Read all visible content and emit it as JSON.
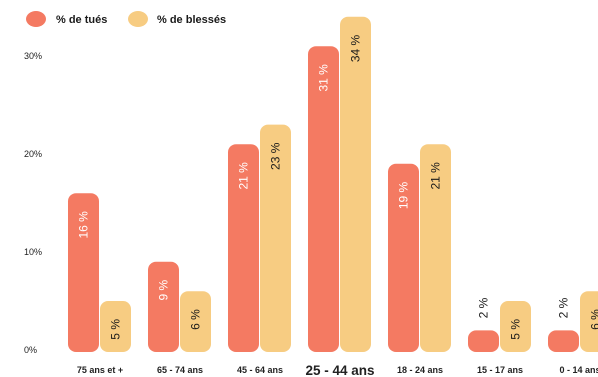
{
  "chart_data": {
    "type": "bar",
    "categories": [
      "75 ans et +",
      "65 - 74 ans",
      "45 - 64 ans",
      "25 - 44 ans",
      "18 - 24 ans",
      "15 - 17 ans",
      "0 - 14 ans"
    ],
    "highlight_category": "25 - 44 ans",
    "series": [
      {
        "name": "% de tués",
        "values": [
          16,
          9,
          21,
          31,
          19,
          2,
          2
        ],
        "labels": [
          "16 %",
          "9 %",
          "21 %",
          "31 %",
          "19 %",
          "2 %",
          "2 %"
        ],
        "color": "#f47a62",
        "label_color": "#ffffff"
      },
      {
        "name": "% de blessés",
        "values": [
          5,
          6,
          23,
          34,
          21,
          5,
          6
        ],
        "labels": [
          "5 %",
          "6 %",
          "23 %",
          "34 %",
          "21 %",
          "5 %",
          "6 %"
        ],
        "color": "#f7cc82",
        "label_color": "#1a1a1a"
      }
    ],
    "yticks": [
      "0%",
      "10%",
      "20%",
      "30%"
    ],
    "ylim": [
      0,
      35
    ],
    "legend_position": "top-left",
    "grid": false
  }
}
